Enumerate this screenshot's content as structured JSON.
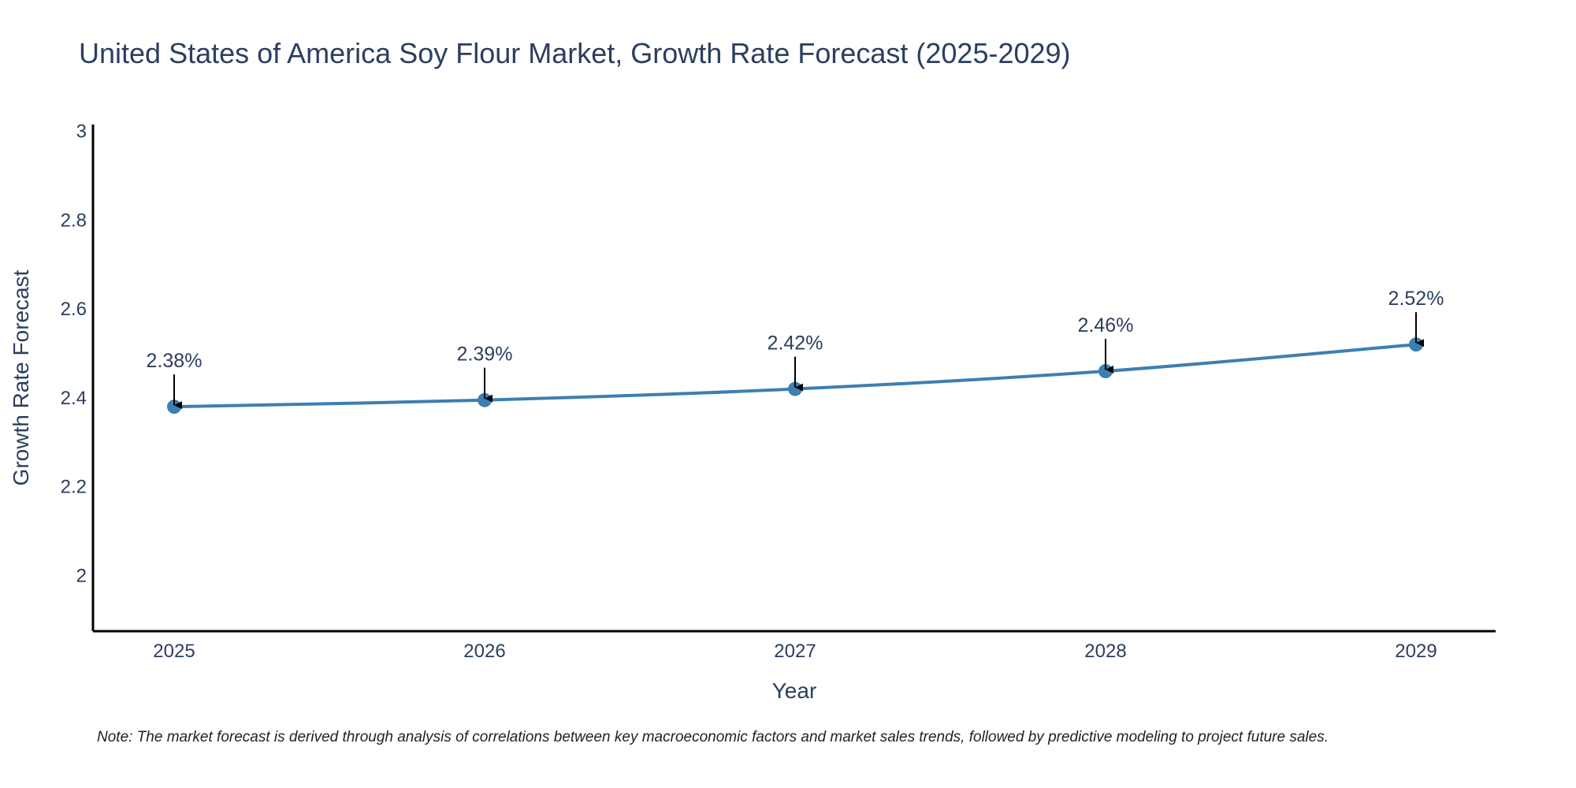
{
  "chart_data": {
    "type": "line",
    "title": "United States of America Soy Flour Market, Growth Rate Forecast (2025-2029)",
    "xlabel": "Year",
    "ylabel": "Growth Rate Forecast",
    "categories": [
      "2025",
      "2026",
      "2027",
      "2028",
      "2029"
    ],
    "series": [
      {
        "name": "Growth Rate Forecast",
        "values": [
          2.38,
          2.395,
          2.42,
          2.46,
          2.52
        ],
        "labels": [
          "2.38%",
          "2.39%",
          "2.42%",
          "2.46%",
          "2.52%"
        ],
        "color": "#3d7fb2"
      }
    ],
    "ylim": [
      1.875,
      3.015
    ],
    "yticks": [
      2,
      2.2,
      2.4,
      2.6,
      2.8,
      3
    ],
    "ytick_labels": [
      "2",
      "2.2",
      "2.4",
      "2.6",
      "2.8",
      "3"
    ],
    "grid": false,
    "note": "Note: The market forecast is derived through analysis of correlations between key macroeconomic factors and market sales trends, followed by predictive modeling to project future sales."
  }
}
